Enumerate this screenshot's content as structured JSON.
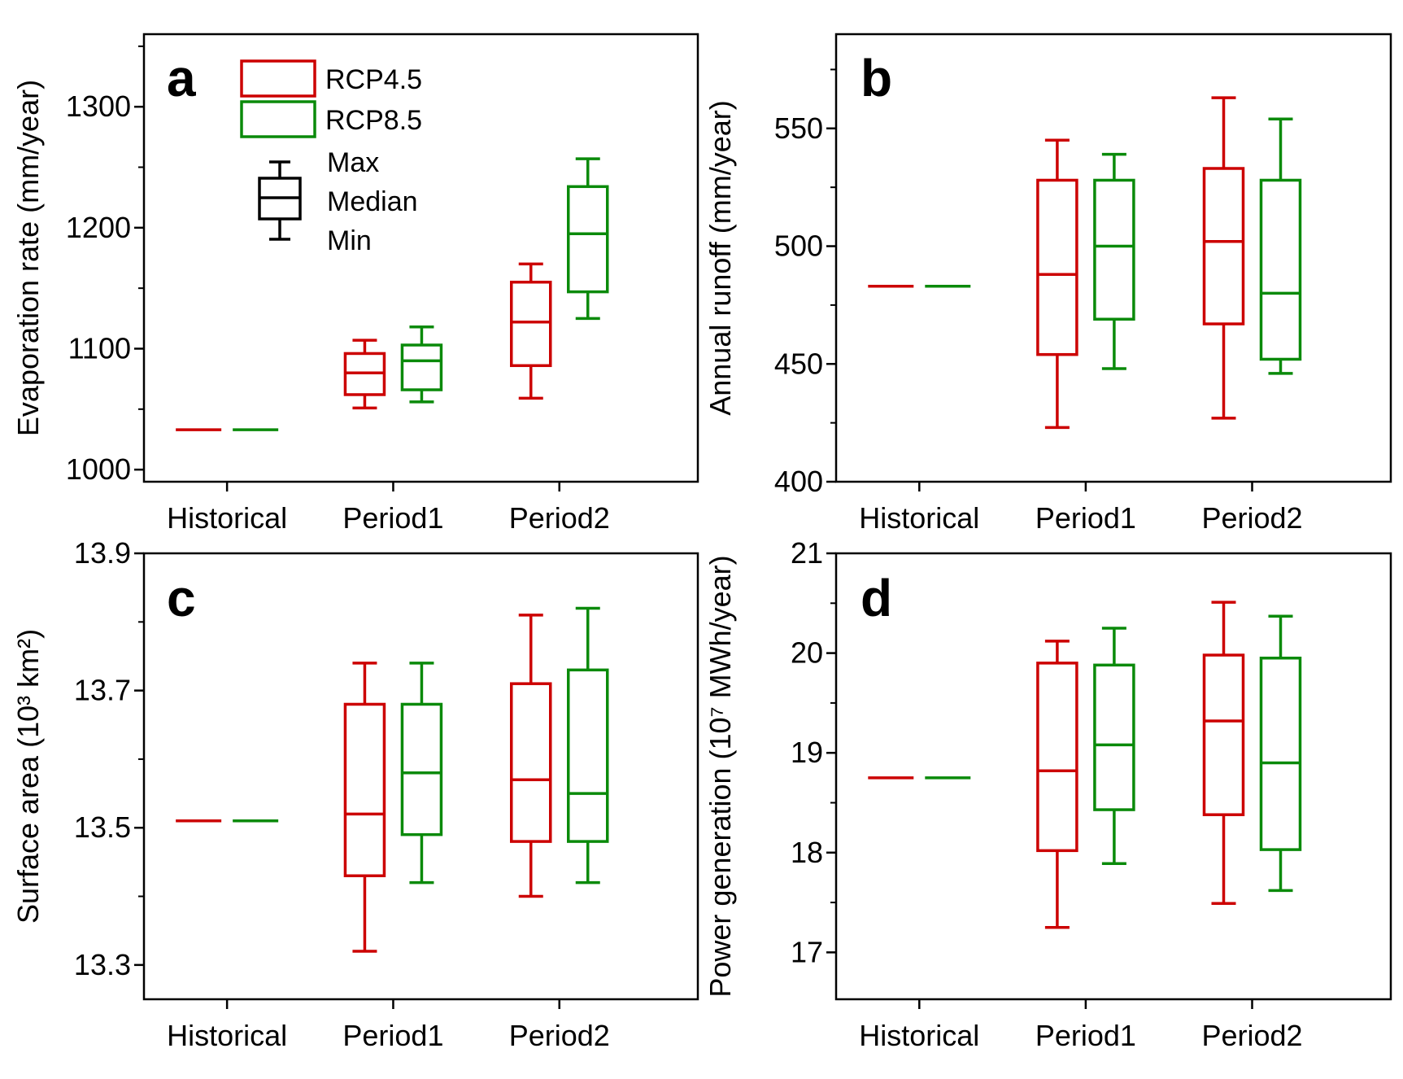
{
  "colors": {
    "rcp45": "#cc0000",
    "rcp85": "#0a8a0a",
    "axis": "#000000"
  },
  "legend": {
    "series": [
      {
        "key": "rcp45",
        "label": "RCP4.5"
      },
      {
        "key": "rcp85",
        "label": "RCP8.5"
      }
    ],
    "stats": {
      "max": "Max",
      "median": "Median",
      "min": "Min"
    }
  },
  "chart_data": [
    {
      "type": "box",
      "panel": "a",
      "ylabel": "Evaporation rate (mm/year)",
      "ylim": [
        990,
        1360
      ],
      "yticks": [
        1000,
        1100,
        1200,
        1300
      ],
      "categories": [
        "Historical",
        "Period1",
        "Period2"
      ],
      "series": [
        {
          "name": "RCP4.5",
          "color_key": "rcp45",
          "boxes": [
            {
              "min": 1033,
              "q1": 1033,
              "median": 1033,
              "q3": 1033,
              "max": 1033
            },
            {
              "min": 1051,
              "q1": 1062,
              "median": 1080,
              "q3": 1096,
              "max": 1107
            },
            {
              "min": 1059,
              "q1": 1086,
              "median": 1122,
              "q3": 1155,
              "max": 1170
            }
          ]
        },
        {
          "name": "RCP8.5",
          "color_key": "rcp85",
          "boxes": [
            {
              "min": 1033,
              "q1": 1033,
              "median": 1033,
              "q3": 1033,
              "max": 1033
            },
            {
              "min": 1056,
              "q1": 1066,
              "median": 1090,
              "q3": 1103,
              "max": 1118
            },
            {
              "min": 1125,
              "q1": 1147,
              "median": 1195,
              "q3": 1234,
              "max": 1257
            }
          ]
        }
      ]
    },
    {
      "type": "box",
      "panel": "b",
      "ylabel": "Annual runoff (mm/year)",
      "ylim": [
        400,
        590
      ],
      "yticks": [
        400,
        450,
        500,
        550
      ],
      "categories": [
        "Historical",
        "Period1",
        "Period2"
      ],
      "series": [
        {
          "name": "RCP4.5",
          "color_key": "rcp45",
          "boxes": [
            {
              "min": 483,
              "q1": 483,
              "median": 483,
              "q3": 483,
              "max": 483
            },
            {
              "min": 423,
              "q1": 454,
              "median": 488,
              "q3": 528,
              "max": 545
            },
            {
              "min": 427,
              "q1": 467,
              "median": 502,
              "q3": 533,
              "max": 563
            }
          ]
        },
        {
          "name": "RCP8.5",
          "color_key": "rcp85",
          "boxes": [
            {
              "min": 483,
              "q1": 483,
              "median": 483,
              "q3": 483,
              "max": 483
            },
            {
              "min": 448,
              "q1": 469,
              "median": 500,
              "q3": 528,
              "max": 539
            },
            {
              "min": 446,
              "q1": 452,
              "median": 480,
              "q3": 528,
              "max": 554
            }
          ]
        }
      ]
    },
    {
      "type": "box",
      "panel": "c",
      "ylabel": "Surface area (10³ km²)",
      "ylim": [
        13.25,
        13.9
      ],
      "yticks": [
        "13.3",
        "13.5",
        "13.7",
        "13.9"
      ],
      "categories": [
        "Historical",
        "Period1",
        "Period2"
      ],
      "series": [
        {
          "name": "RCP4.5",
          "color_key": "rcp45",
          "boxes": [
            {
              "min": 13.51,
              "q1": 13.51,
              "median": 13.51,
              "q3": 13.51,
              "max": 13.51
            },
            {
              "min": 13.32,
              "q1": 13.43,
              "median": 13.52,
              "q3": 13.68,
              "max": 13.74
            },
            {
              "min": 13.4,
              "q1": 13.48,
              "median": 13.57,
              "q3": 13.71,
              "max": 13.81
            }
          ]
        },
        {
          "name": "RCP8.5",
          "color_key": "rcp85",
          "boxes": [
            {
              "min": 13.51,
              "q1": 13.51,
              "median": 13.51,
              "q3": 13.51,
              "max": 13.51
            },
            {
              "min": 13.42,
              "q1": 13.49,
              "median": 13.58,
              "q3": 13.68,
              "max": 13.74
            },
            {
              "min": 13.42,
              "q1": 13.48,
              "median": 13.55,
              "q3": 13.73,
              "max": 13.82
            }
          ]
        }
      ]
    },
    {
      "type": "box",
      "panel": "d",
      "ylabel": "Power generation (10⁷ MWh/year)",
      "ylim": [
        16.53,
        21
      ],
      "yticks": [
        17,
        18,
        19,
        20,
        21
      ],
      "categories": [
        "Historical",
        "Period1",
        "Period2"
      ],
      "series": [
        {
          "name": "RCP4.5",
          "color_key": "rcp45",
          "boxes": [
            {
              "min": 18.75,
              "q1": 18.75,
              "median": 18.75,
              "q3": 18.75,
              "max": 18.75
            },
            {
              "min": 17.25,
              "q1": 18.02,
              "median": 18.82,
              "q3": 19.9,
              "max": 20.12
            },
            {
              "min": 17.49,
              "q1": 18.38,
              "median": 19.32,
              "q3": 19.98,
              "max": 20.51
            }
          ]
        },
        {
          "name": "RCP8.5",
          "color_key": "rcp85",
          "boxes": [
            {
              "min": 18.75,
              "q1": 18.75,
              "median": 18.75,
              "q3": 18.75,
              "max": 18.75
            },
            {
              "min": 17.89,
              "q1": 18.43,
              "median": 19.08,
              "q3": 19.88,
              "max": 20.25
            },
            {
              "min": 17.62,
              "q1": 18.03,
              "median": 18.9,
              "q3": 19.95,
              "max": 20.37
            }
          ]
        }
      ]
    }
  ]
}
